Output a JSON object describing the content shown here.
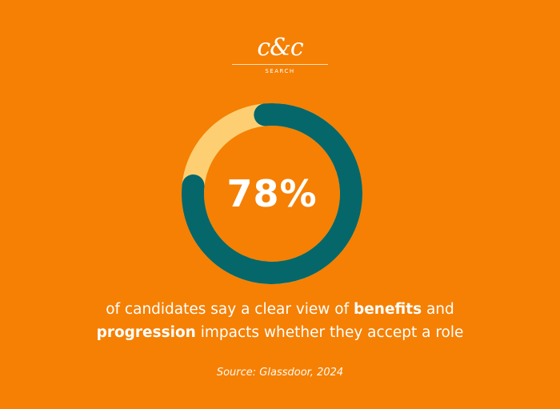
{
  "logo": {
    "mark": "c&c",
    "subtitle": "SEARCH"
  },
  "chart_data": {
    "type": "pie",
    "variant": "donut",
    "values": [
      78,
      22
    ],
    "center_label": "78%",
    "colors": {
      "primary": "#05676A",
      "remainder": "#FDCF72",
      "background": "#F58003"
    }
  },
  "caption": {
    "line1_pre": "of candidates say a clear view of ",
    "line1_bold": "benefits",
    "line1_post": " and",
    "line2_bold": "progression",
    "line2_post": " impacts whether they accept a role"
  },
  "source": "Source: Glassdoor, 2024"
}
